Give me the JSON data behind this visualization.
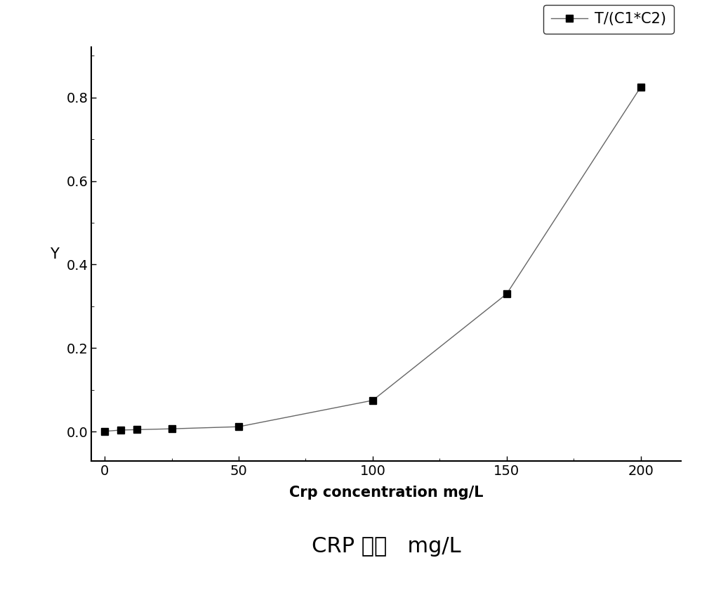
{
  "x": [
    0,
    6,
    12,
    25,
    50,
    100,
    150,
    200
  ],
  "y": [
    0.001,
    0.004,
    0.005,
    0.007,
    0.012,
    0.075,
    0.33,
    0.825
  ],
  "xlabel_en": "Crp concentration mg/L",
  "xlabel_cn": "CRP 浓度   mg/L",
  "ylabel": "Y",
  "legend_label": "T/(C1*C2)",
  "line_color": "#666666",
  "marker_color": "#000000",
  "marker": "s",
  "marker_size": 7,
  "line_width": 1.0,
  "xlim": [
    -5,
    215
  ],
  "ylim": [
    -0.07,
    0.92
  ],
  "xticks": [
    0,
    50,
    100,
    150,
    200
  ],
  "yticks": [
    0.0,
    0.2,
    0.4,
    0.6,
    0.8
  ],
  "background_color": "#ffffff",
  "cn_fontsize": 22,
  "en_label_fontsize": 15,
  "ylabel_fontsize": 15,
  "tick_fontsize": 14,
  "legend_fontsize": 15
}
